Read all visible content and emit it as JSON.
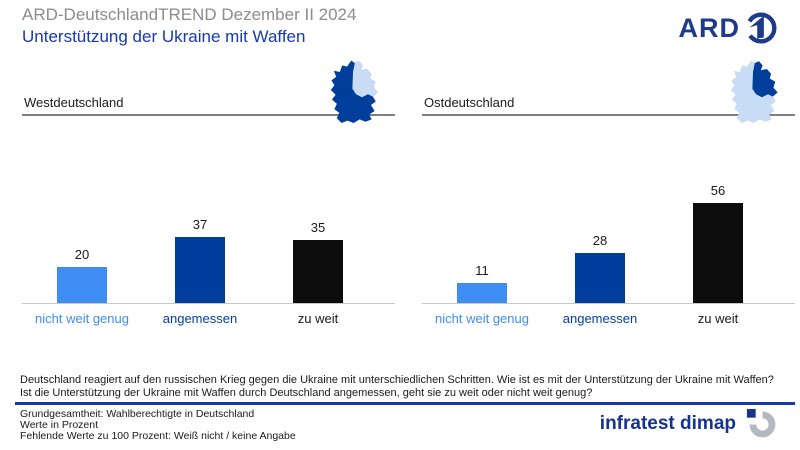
{
  "header": {
    "pretitle": "ARD-DeutschlandTREND Dezember II 2024",
    "title": "Unterstützung der Ukraine mit Waffen",
    "ard_logo_text": "ARD"
  },
  "colors": {
    "title_gray": "#8c8c8c",
    "title_blue": "#1638b0",
    "ard_navy": "#1d3a8c",
    "light_blue": "#3e8df2",
    "dark_blue": "#003e9c",
    "bar_black": "#0c0c0c",
    "label_black": "#1a1a1a",
    "map_light": "#c9dcf5",
    "brand_blue": "#16338e",
    "brand_gray": "#b4b8bf"
  },
  "chart_data": [
    {
      "type": "bar",
      "title": "Westdeutschland",
      "region_icon": "germany-map-west-highlighted",
      "categories": [
        "nicht weit genug",
        "angemessen",
        "zu weit"
      ],
      "values": [
        20,
        37,
        35
      ],
      "bar_colors": [
        "#3e8df2",
        "#003e9c",
        "#0c0c0c"
      ],
      "label_colors": [
        "#3e8df2",
        "#003e9c",
        "#1a1a1a"
      ],
      "unit": "Prozent",
      "ylim": [
        0,
        60
      ],
      "grid": false,
      "legend": false
    },
    {
      "type": "bar",
      "title": "Ostdeutschland",
      "region_icon": "germany-map-east-highlighted",
      "categories": [
        "nicht weit genug",
        "angemessen",
        "zu weit"
      ],
      "values": [
        11,
        28,
        56
      ],
      "bar_colors": [
        "#3e8df2",
        "#003e9c",
        "#0c0c0c"
      ],
      "label_colors": [
        "#3e8df2",
        "#003e9c",
        "#1a1a1a"
      ],
      "unit": "Prozent",
      "ylim": [
        0,
        60
      ],
      "grid": false,
      "legend": false
    }
  ],
  "question": "Deutschland reagiert auf den russischen Krieg gegen die Ukraine mit unterschiedlichen Schritten. Wie ist es mit der Unterstützung der Ukraine mit Waffen? Ist die Unterstützung der Ukraine mit Waffen durch Deutschland angemessen, geht sie zu weit oder nicht weit genug?",
  "footnotes": [
    "Grundgesamtheit: Wahlberechtigte in Deutschland",
    "Werte in Prozent",
    "Fehlende Werte zu 100 Prozent: Weiß nicht / keine Angabe"
  ],
  "brand": {
    "name": "infratest dimap"
  }
}
